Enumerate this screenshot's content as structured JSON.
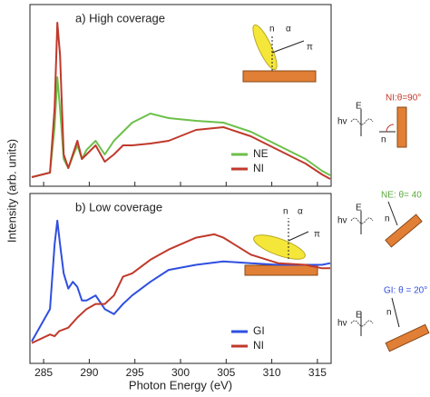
{
  "chart_data": [
    {
      "type": "line",
      "title": "a) High coverage",
      "ylabel": "Intensity (arb. units)",
      "xlim": [
        283.5,
        316.5
      ],
      "ylim": [
        0,
        1
      ],
      "xticks": [
        285,
        290,
        295,
        300,
        305,
        310,
        315
      ],
      "legend": "lower right",
      "series": [
        {
          "name": "NE",
          "color": "#6cc04a",
          "x": [
            283.7,
            285.7,
            286.2,
            286.5,
            286.8,
            287.2,
            287.7,
            288.2,
            288.7,
            289.2,
            289.7,
            290.7,
            291.7,
            292.7,
            293.7,
            294.7,
            296.7,
            298.7,
            301.7,
            304.7,
            307.7,
            310.7,
            313.7,
            315.5,
            316.4
          ],
          "values": [
            0.05,
            0.075,
            0.325,
            0.6,
            0.425,
            0.15,
            0.1,
            0.165,
            0.225,
            0.15,
            0.2,
            0.25,
            0.175,
            0.25,
            0.3,
            0.35,
            0.4,
            0.375,
            0.36,
            0.35,
            0.3,
            0.225,
            0.15,
            0.085,
            0.06
          ]
        },
        {
          "name": "NI",
          "color": "#c0392b",
          "x": [
            283.7,
            285.7,
            286.2,
            286.5,
            286.8,
            287.2,
            287.7,
            288.2,
            288.7,
            289.2,
            289.7,
            290.7,
            291.7,
            292.7,
            293.7,
            294.7,
            296.7,
            298.7,
            301.7,
            304.7,
            307.7,
            310.7,
            313.7,
            315.5,
            316.4
          ],
          "values": [
            0.05,
            0.075,
            0.43,
            0.9,
            0.72,
            0.175,
            0.1,
            0.175,
            0.25,
            0.15,
            0.175,
            0.225,
            0.135,
            0.175,
            0.225,
            0.225,
            0.235,
            0.25,
            0.31,
            0.325,
            0.275,
            0.2,
            0.125,
            0.065,
            0.04
          ]
        }
      ]
    },
    {
      "type": "line",
      "title": "b) Low coverage",
      "xlabel": "Photon Energy (eV)",
      "xlim": [
        283.5,
        316.5
      ],
      "ylim": [
        0,
        1
      ],
      "xticks": [
        285,
        290,
        295,
        300,
        305,
        310,
        315
      ],
      "legend": "lower right",
      "series": [
        {
          "name": "GI",
          "color": "#2f4fe0",
          "x": [
            283.7,
            285.7,
            286.2,
            286.5,
            286.8,
            287.2,
            287.7,
            288.2,
            288.7,
            289.2,
            289.7,
            290.7,
            291.7,
            292.7,
            293.7,
            294.7,
            296.7,
            298.7,
            301.7,
            304.7,
            307.7,
            310.7,
            313.7,
            315.5,
            316.4
          ],
          "values": [
            0.13,
            0.32,
            0.7,
            0.84,
            0.7,
            0.53,
            0.44,
            0.48,
            0.45,
            0.37,
            0.37,
            0.4,
            0.32,
            0.29,
            0.35,
            0.4,
            0.48,
            0.55,
            0.58,
            0.6,
            0.59,
            0.58,
            0.58,
            0.58,
            0.59
          ]
        },
        {
          "name": "NI",
          "color": "#c0392b",
          "x": [
            283.7,
            285.7,
            286.2,
            286.7,
            287.7,
            288.7,
            289.7,
            290.7,
            291.7,
            292.7,
            293.7,
            294.7,
            296.7,
            298.7,
            301.7,
            303.7,
            304.7,
            307.7,
            310.7,
            313.7,
            315.5,
            316.4
          ],
          "values": [
            0.12,
            0.17,
            0.16,
            0.19,
            0.21,
            0.27,
            0.32,
            0.35,
            0.35,
            0.4,
            0.51,
            0.53,
            0.61,
            0.67,
            0.74,
            0.76,
            0.74,
            0.64,
            0.59,
            0.58,
            0.56,
            0.56
          ]
        }
      ]
    }
  ],
  "insets": [
    {
      "normal": "n",
      "angle": "α",
      "orbital": "π"
    },
    {
      "normal": "n",
      "angle": "α",
      "orbital": "π"
    }
  ],
  "geometries": [
    {
      "label": "NI:θ=90°",
      "photon": "hv",
      "field": "E",
      "normal": "n"
    },
    {
      "label": "NE: θ= 40",
      "photon": "hv",
      "field": "E",
      "normal": "n"
    },
    {
      "label": "GI: θ = 20°",
      "photon": "hv",
      "field": "E",
      "normal": "n"
    }
  ]
}
